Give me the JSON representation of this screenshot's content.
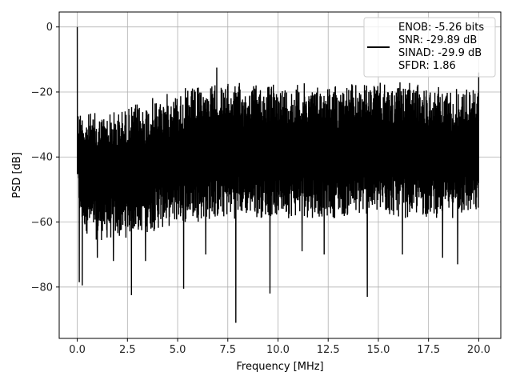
{
  "chart_data": {
    "type": "line",
    "title": "",
    "xlabel": "Frequency [MHz]",
    "ylabel": "PSD [dB]",
    "xlim": [
      -0.9,
      21.1
    ],
    "ylim": [
      -95.8,
      4.6
    ],
    "xticks": [
      0.0,
      2.5,
      5.0,
      7.5,
      10.0,
      12.5,
      15.0,
      17.5,
      20.0
    ],
    "xtick_labels": [
      "0.0",
      "2.5",
      "5.0",
      "7.5",
      "10.0",
      "12.5",
      "15.0",
      "17.5",
      "20.0"
    ],
    "yticks": [
      0,
      -20,
      -40,
      -60,
      -80
    ],
    "ytick_labels": [
      "0",
      "−20",
      "−40",
      "−60",
      "−80"
    ],
    "grid": true,
    "legend_position": "top-right",
    "series": [
      {
        "name": "ENOB: -5.26 bits\nSNR: -29.89 dB\nSINAD: -29.9 dB\nSFDR: 1.86",
        "color": "#000000",
        "envelope": {
          "x": [
            0.0,
            0.1,
            0.2,
            0.5,
            1.0,
            2.0,
            3.0,
            4.0,
            5.0,
            6.0,
            7.0,
            8.0,
            9.0,
            10.0,
            11.0,
            12.0,
            13.0,
            14.0,
            15.0,
            16.0,
            17.0,
            18.0,
            19.0,
            20.0
          ],
          "upper": [
            -25,
            -24,
            -25,
            -26,
            -26,
            -25,
            -23,
            -21,
            -19,
            -18,
            -17,
            -17,
            -17,
            -17,
            -17,
            -17,
            -17,
            -17,
            -17,
            -17,
            -17,
            -18,
            -18,
            -18
          ],
          "lower": [
            -48,
            -60,
            -62,
            -64,
            -66,
            -66,
            -64,
            -63,
            -61,
            -60,
            -60,
            -59,
            -59,
            -59,
            -59,
            -59,
            -59,
            -59,
            -59,
            -59,
            -59,
            -59,
            -59,
            -59
          ]
        },
        "peaks": [
          {
            "x": 0.0,
            "y": 0.0
          },
          {
            "x": 6.95,
            "y": -12.5
          },
          {
            "x": 20.0,
            "y": -14.0
          }
        ],
        "dips": [
          {
            "x": 0.1,
            "y": -78.5
          },
          {
            "x": 0.25,
            "y": -79.5
          },
          {
            "x": 1.0,
            "y": -71.0
          },
          {
            "x": 1.8,
            "y": -72.0
          },
          {
            "x": 2.7,
            "y": -82.5
          },
          {
            "x": 3.4,
            "y": -72.0
          },
          {
            "x": 5.3,
            "y": -80.5
          },
          {
            "x": 6.4,
            "y": -70.0
          },
          {
            "x": 7.9,
            "y": -91.0
          },
          {
            "x": 9.6,
            "y": -82.0
          },
          {
            "x": 11.2,
            "y": -69.0
          },
          {
            "x": 12.3,
            "y": -70.0
          },
          {
            "x": 14.45,
            "y": -83.0
          },
          {
            "x": 16.2,
            "y": -70.0
          },
          {
            "x": 18.2,
            "y": -71.0
          },
          {
            "x": 18.95,
            "y": -73.0
          }
        ]
      }
    ]
  }
}
